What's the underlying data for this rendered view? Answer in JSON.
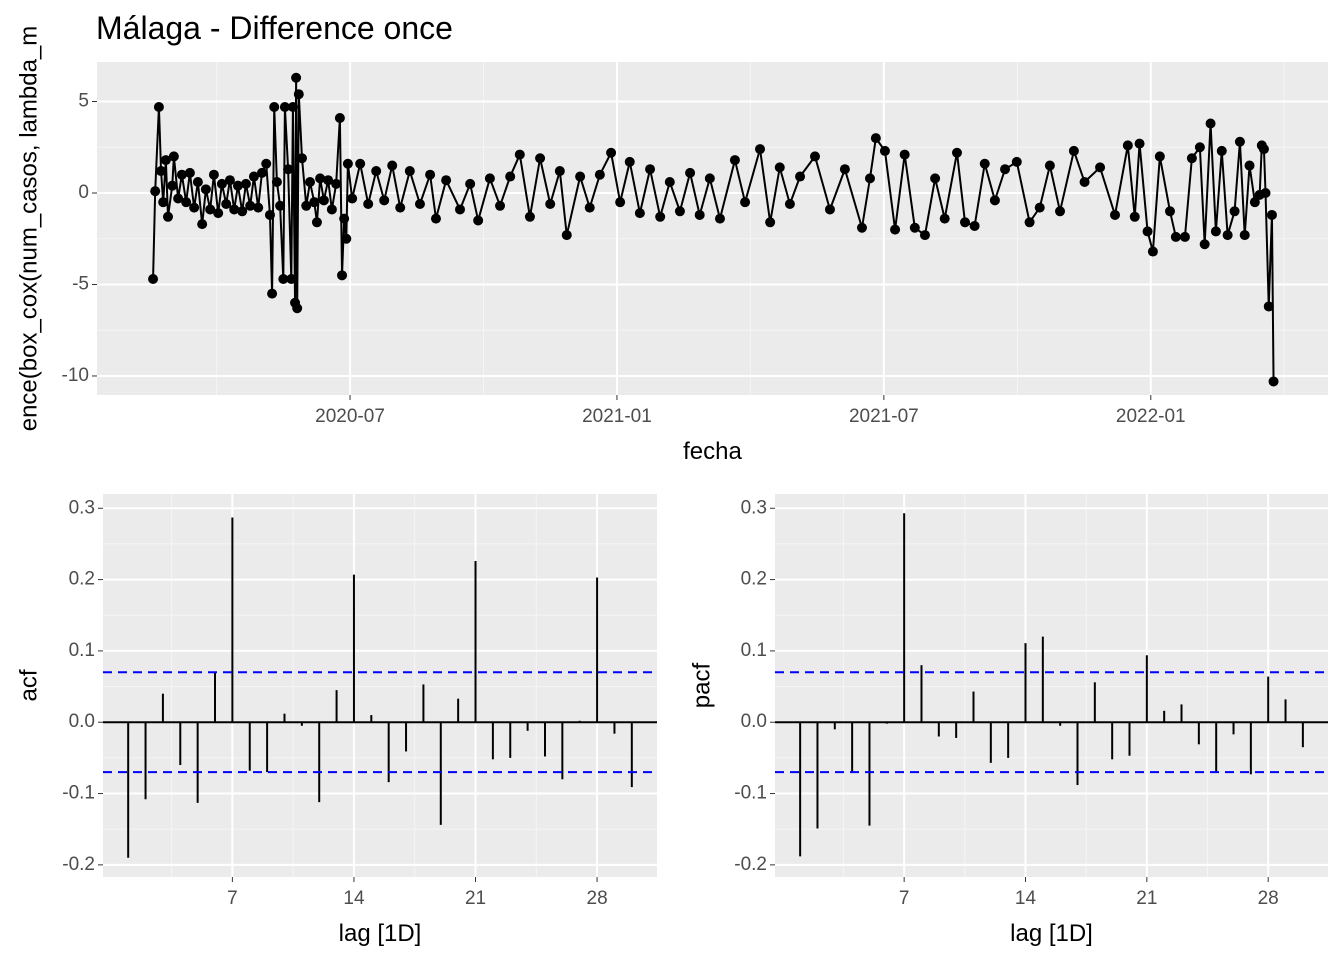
{
  "chart_data": [
    {
      "type": "line",
      "title": "Málaga - Difference once",
      "x_label": "fecha",
      "y_label": "ence(box_cox(num_casos, lambda_m",
      "color": "#000000",
      "grid": true,
      "x": [
        2020.131,
        2020.135,
        2020.142,
        2020.146,
        2020.15,
        2020.155,
        2020.159,
        2020.167,
        2020.17,
        2020.178,
        2020.185,
        2020.193,
        2020.2,
        2020.208,
        2020.215,
        2020.223,
        2020.23,
        2020.238,
        2020.245,
        2020.253,
        2020.26,
        2020.268,
        2020.275,
        2020.283,
        2020.29,
        2020.298,
        2020.305,
        2020.313,
        2020.32,
        2020.328,
        2020.335,
        2020.343,
        2020.35,
        2020.354,
        2020.358,
        2020.363,
        2020.369,
        2020.375,
        2020.378,
        2020.384,
        2020.39,
        2020.393,
        2020.397,
        2020.399,
        2020.401,
        2020.404,
        2020.41,
        2020.418,
        2020.425,
        2020.433,
        2020.438,
        2020.444,
        2020.451,
        2020.459,
        2020.466,
        2020.474,
        2020.481,
        2020.485,
        2020.489,
        2020.493,
        2020.496,
        2020.504,
        2020.519,
        2020.534,
        2020.549,
        2020.564,
        2020.579,
        2020.594,
        2020.612,
        2020.631,
        2020.65,
        2020.661,
        2020.68,
        2020.706,
        2020.725,
        2020.74,
        2020.762,
        2020.781,
        2020.8,
        2020.818,
        2020.837,
        2020.856,
        2020.875,
        2020.893,
        2020.906,
        2020.931,
        2020.949,
        2020.968,
        2020.989,
        2021.006,
        2021.024,
        2021.043,
        2021.062,
        2021.081,
        2021.099,
        2021.118,
        2021.137,
        2021.155,
        2021.174,
        2021.193,
        2021.221,
        2021.24,
        2021.268,
        2021.287,
        2021.305,
        2021.324,
        2021.343,
        2021.371,
        2021.399,
        2021.427,
        2021.459,
        2021.474,
        2021.485,
        2021.502,
        2021.521,
        2021.539,
        2021.558,
        2021.577,
        2021.596,
        2021.614,
        2021.637,
        2021.652,
        2021.67,
        2021.689,
        2021.708,
        2021.727,
        2021.749,
        2021.773,
        2021.792,
        2021.811,
        2021.83,
        2021.856,
        2021.876,
        2021.905,
        2021.933,
        2021.957,
        2021.97,
        2021.979,
        2021.994,
        2022.004,
        2022.017,
        2022.036,
        2022.047,
        2022.064,
        2022.077,
        2022.092,
        2022.101,
        2022.112,
        2022.122,
        2022.133,
        2022.144,
        2022.157,
        2022.167,
        2022.176,
        2022.185,
        2022.195,
        2022.204,
        2022.208,
        2022.212,
        2022.215,
        2022.221,
        2022.227,
        2022.23
      ],
      "values": [
        -4.7,
        0.1,
        4.7,
        1.2,
        -0.5,
        1.8,
        -1.3,
        0.4,
        2.0,
        -0.3,
        1.0,
        -0.5,
        1.1,
        -0.8,
        0.6,
        -1.7,
        0.2,
        -0.9,
        1.0,
        -1.1,
        0.5,
        -0.6,
        0.7,
        -0.9,
        0.4,
        -1.0,
        0.5,
        -0.7,
        0.9,
        -0.8,
        1.1,
        1.6,
        -1.2,
        -5.5,
        4.7,
        0.6,
        -0.7,
        -4.7,
        4.7,
        1.3,
        -4.7,
        4.7,
        -6.0,
        6.3,
        -6.3,
        5.4,
        1.9,
        -0.7,
        0.6,
        -0.5,
        -1.6,
        0.8,
        -0.4,
        0.7,
        -0.9,
        0.5,
        4.1,
        -4.5,
        -1.4,
        -2.5,
        1.6,
        -0.3,
        1.6,
        -0.6,
        1.2,
        -0.4,
        1.5,
        -0.8,
        1.2,
        -0.6,
        1.0,
        -1.4,
        0.7,
        -0.9,
        0.5,
        -1.5,
        0.8,
        -0.7,
        0.9,
        2.1,
        -1.3,
        1.9,
        -0.6,
        1.2,
        -2.3,
        0.9,
        -0.8,
        1.0,
        2.2,
        -0.5,
        1.7,
        -1.1,
        1.3,
        -1.3,
        0.6,
        -1.0,
        1.1,
        -1.2,
        0.8,
        -1.4,
        1.8,
        -0.5,
        2.4,
        -1.6,
        1.4,
        -0.6,
        0.9,
        2.0,
        -0.9,
        1.3,
        -1.9,
        0.8,
        3.0,
        2.3,
        -2.0,
        2.1,
        -1.9,
        -2.3,
        0.8,
        -1.4,
        2.2,
        -1.6,
        -1.8,
        1.6,
        -0.4,
        1.3,
        1.7,
        -1.6,
        -0.8,
        1.5,
        -1.0,
        2.3,
        0.6,
        1.4,
        -1.2,
        2.6,
        -1.3,
        2.7,
        -2.1,
        -3.2,
        2.0,
        -1.0,
        -2.4,
        -2.4,
        1.9,
        2.5,
        -2.8,
        3.8,
        -2.1,
        2.3,
        -2.3,
        -1.0,
        2.8,
        -2.3,
        1.5,
        -0.5,
        -0.1,
        2.6,
        2.4,
        0.0,
        -6.2,
        -1.2,
        -10.3
      ],
      "xlim": [
        2020.026,
        2022.332
      ],
      "ylim": [
        -11.04,
        7.16
      ],
      "xticks": [
        {
          "value": 2020.5,
          "label": "2020-07"
        },
        {
          "value": 2021.0,
          "label": "2021-01"
        },
        {
          "value": 2021.5,
          "label": "2021-07"
        },
        {
          "value": 2022.0,
          "label": "2022-01"
        }
      ],
      "yticks": [
        -10,
        -5,
        0,
        5
      ]
    },
    {
      "type": "acf",
      "x_label": "lag [1D]",
      "y_label": "acf",
      "color": "#000000",
      "grid": true,
      "x": [
        1,
        2,
        3,
        4,
        5,
        6,
        7,
        8,
        9,
        10,
        11,
        12,
        13,
        14,
        15,
        16,
        17,
        18,
        19,
        20,
        21,
        22,
        23,
        24,
        25,
        26,
        27,
        28,
        29,
        30
      ],
      "values": [
        -0.19,
        -0.108,
        0.04,
        -0.06,
        -0.113,
        0.07,
        0.287,
        -0.068,
        -0.07,
        0.012,
        -0.005,
        -0.112,
        0.045,
        0.207,
        0.01,
        -0.084,
        -0.041,
        0.053,
        -0.144,
        0.033,
        0.226,
        -0.052,
        -0.05,
        -0.012,
        -0.048,
        -0.08,
        0.002,
        0.203,
        -0.016,
        -0.091
      ],
      "hlines": [
        0.07,
        -0.07
      ],
      "hline_color": "#0000ff",
      "xlim": [
        -0.45,
        31.45
      ],
      "ylim": [
        -0.217,
        0.32
      ],
      "xticks": [
        7,
        14,
        21,
        28
      ],
      "yticks": [
        -0.2,
        -0.1,
        {
          "value": 0,
          "label": "0.0"
        },
        0.1,
        0.2,
        0.3
      ]
    },
    {
      "type": "acf",
      "x_label": "lag [1D]",
      "y_label": "pacf",
      "color": "#000000",
      "grid": true,
      "x": [
        1,
        2,
        3,
        4,
        5,
        6,
        7,
        8,
        9,
        10,
        11,
        12,
        13,
        14,
        15,
        16,
        17,
        18,
        19,
        20,
        21,
        22,
        23,
        24,
        25,
        26,
        27,
        28,
        29,
        30
      ],
      "values": [
        -0.188,
        -0.149,
        -0.01,
        -0.07,
        -0.145,
        -0.002,
        0.293,
        0.08,
        -0.02,
        -0.022,
        0.043,
        -0.057,
        -0.05,
        0.111,
        0.12,
        -0.005,
        -0.088,
        0.056,
        -0.052,
        -0.047,
        0.094,
        0.016,
        0.025,
        -0.031,
        -0.07,
        -0.017,
        -0.073,
        0.064,
        0.032,
        -0.035
      ],
      "hlines": [
        0.07,
        -0.07
      ],
      "hline_color": "#0000ff",
      "xlim": [
        -0.45,
        31.45
      ],
      "ylim": [
        -0.217,
        0.32
      ],
      "xticks": [
        7,
        14,
        21,
        28
      ],
      "yticks": [
        -0.2,
        -0.1,
        {
          "value": 0,
          "label": "0.0"
        },
        0.1,
        0.2,
        0.3
      ]
    }
  ]
}
